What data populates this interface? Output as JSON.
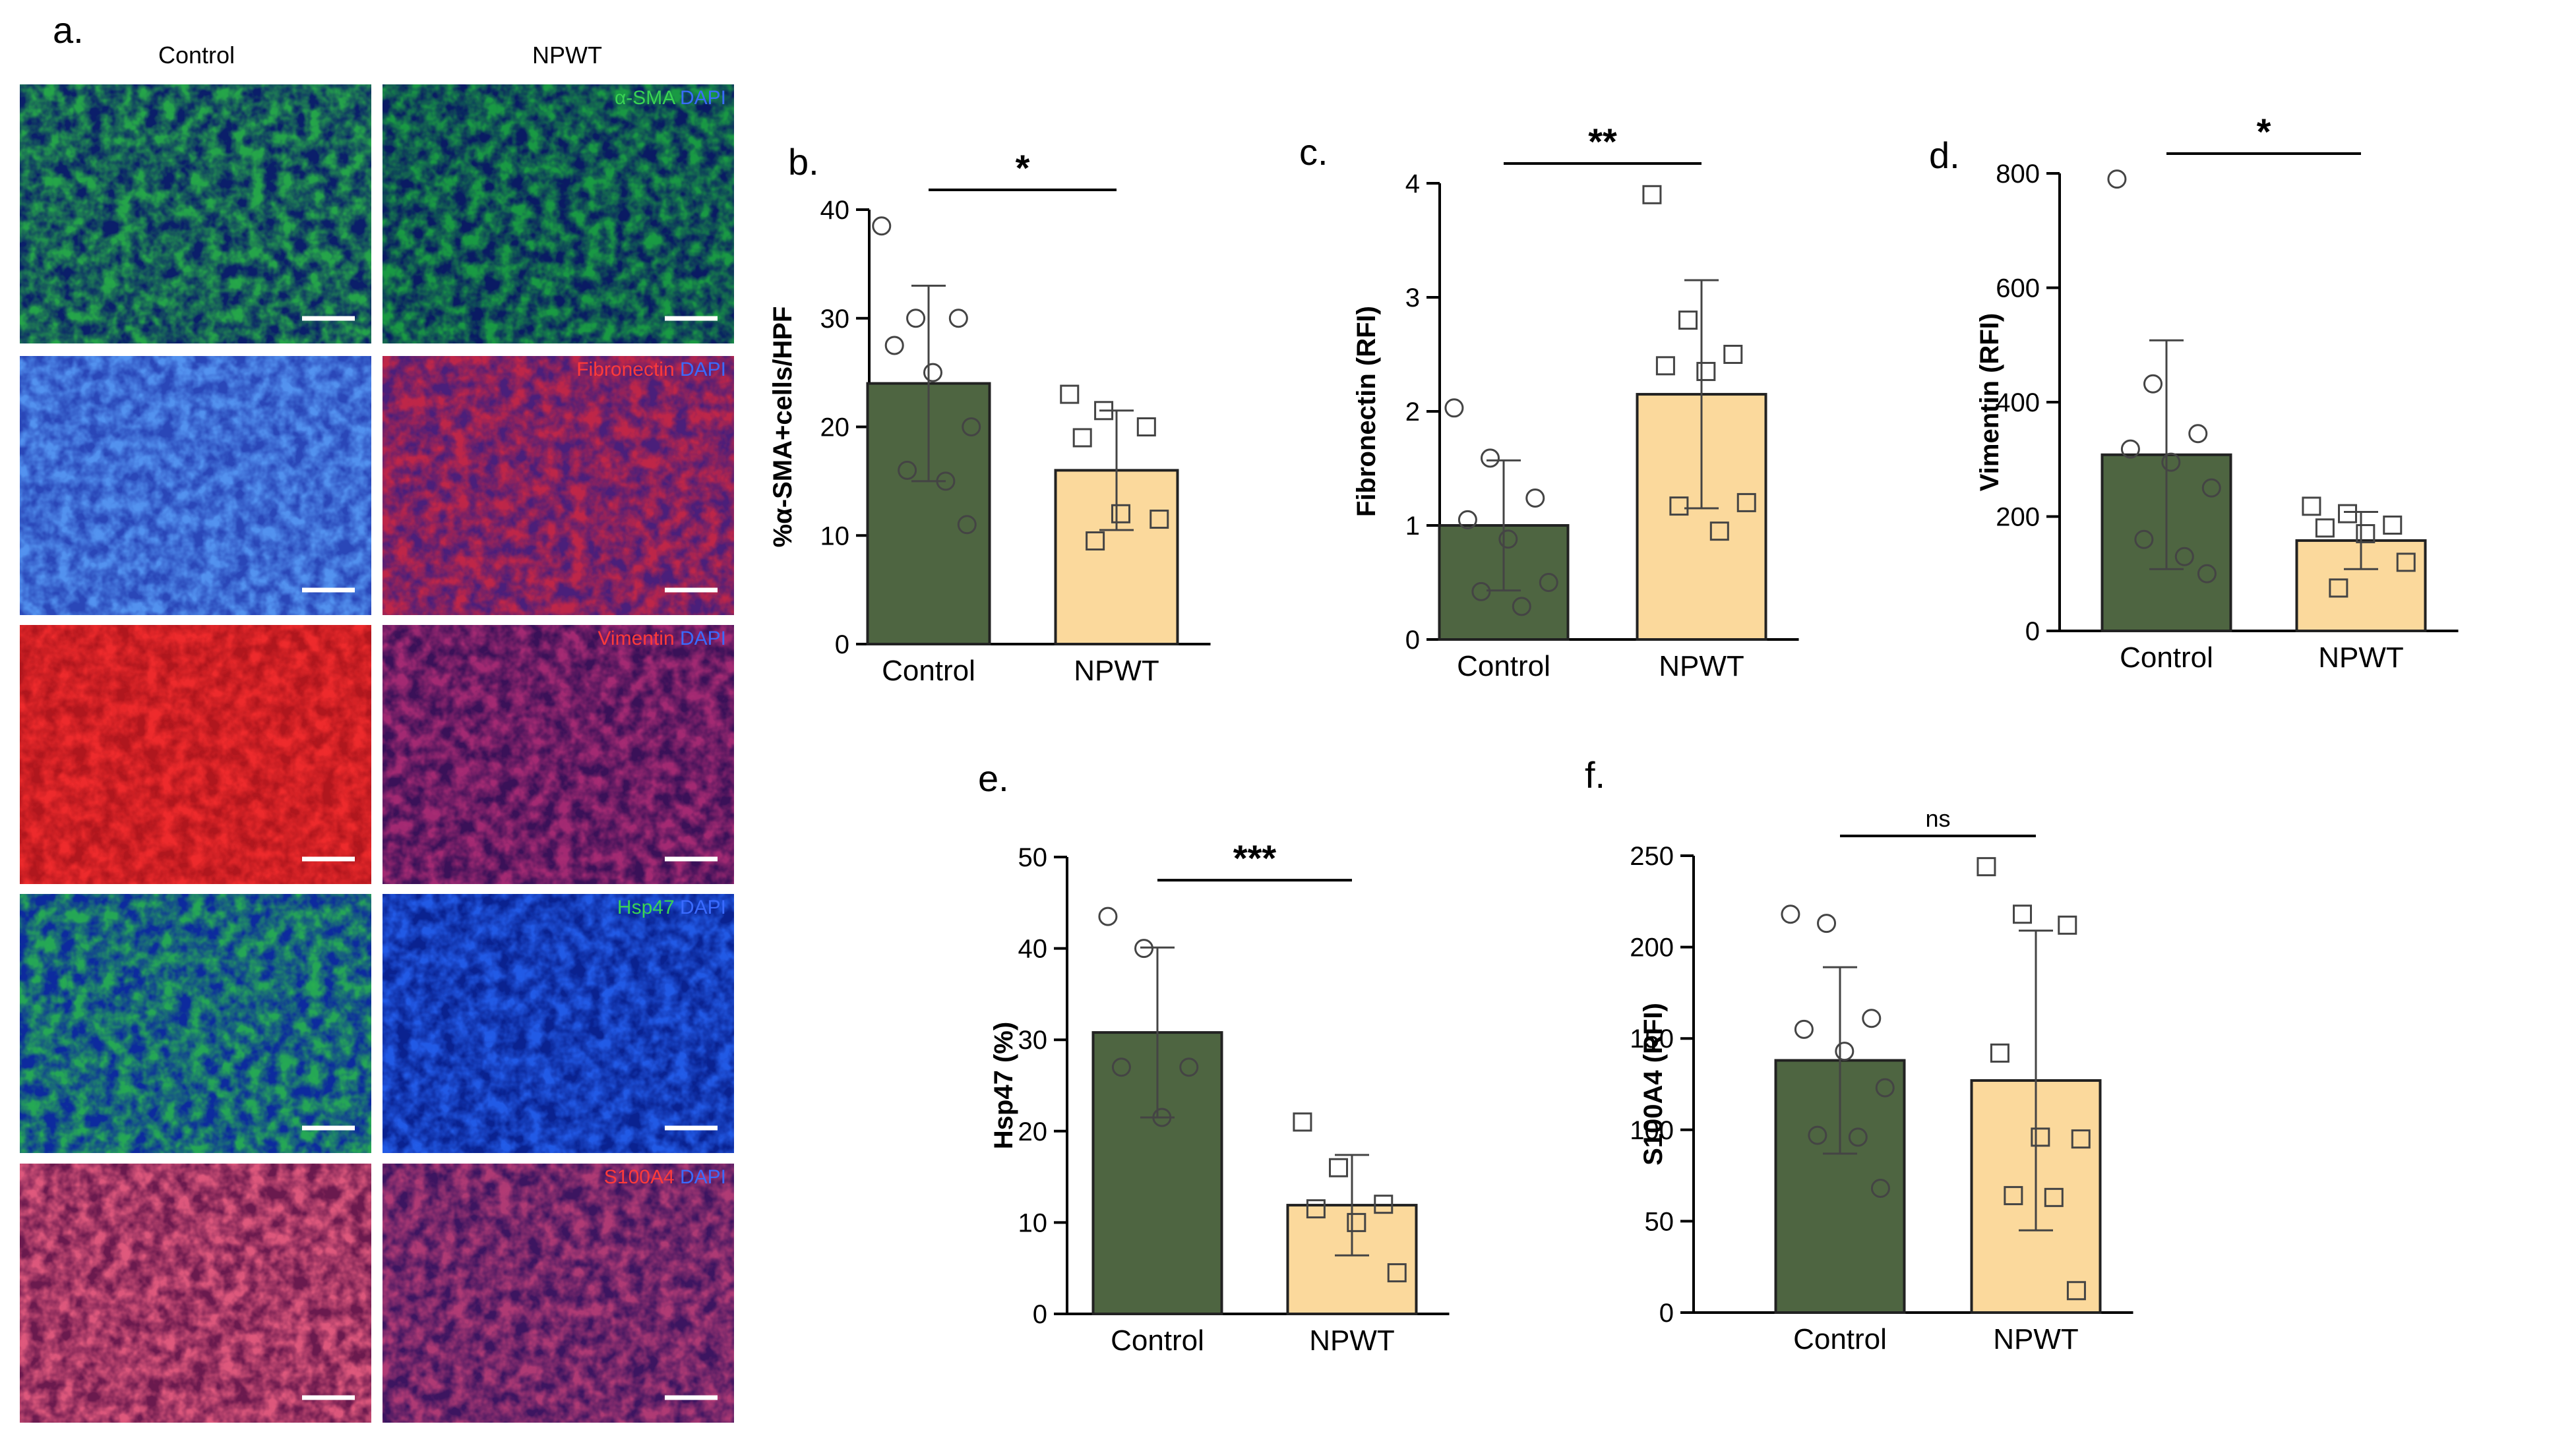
{
  "figure": {
    "panel_a": {
      "letter": "a.",
      "col_headers": [
        "Control",
        "NPWT"
      ],
      "rows": [
        {
          "stain": "α-SMA",
          "stain_color": "#39d353",
          "counter": "DAPI",
          "counter_color": "#3a6bff",
          "bg_control": "#0b1e6a",
          "bg_npwt": "#0a1a63",
          "fg_control": "#2ecc40",
          "fg_npwt": "#1fbf3a"
        },
        {
          "stain": "Fibronectin",
          "stain_color": "#ff3a3a",
          "counter": "DAPI",
          "counter_color": "#3a6bff",
          "bg_control": "#2a47b8",
          "bg_npwt": "#4a1f7a",
          "fg_control": "#5fa8ff",
          "fg_npwt": "#e0283a"
        },
        {
          "stain": "Vimentin",
          "stain_color": "#ff3a3a",
          "counter": "DAPI",
          "counter_color": "#3a6bff",
          "bg_control": "#b0171e",
          "bg_npwt": "#3a1158",
          "fg_control": "#ff3030",
          "fg_npwt": "#c2327a"
        },
        {
          "stain": "Hsp47",
          "stain_color": "#39d353",
          "counter": "DAPI",
          "counter_color": "#3a6bff",
          "bg_control": "#0d2a9e",
          "bg_npwt": "#0a2290",
          "fg_control": "#2ecc40",
          "fg_npwt": "#2a6bff"
        },
        {
          "stain": "S100A4",
          "stain_color": "#ff3a3a",
          "counter": "DAPI",
          "counter_color": "#3a6bff",
          "bg_control": "#6a1a4e",
          "bg_npwt": "#3c1560",
          "fg_control": "#ff6a8a",
          "fg_npwt": "#d0457a"
        }
      ]
    }
  },
  "colors": {
    "control_fill": "#4e6541",
    "npwt_fill": "#fbd99c",
    "bar_stroke": "#222222"
  },
  "chart_data": [
    {
      "panel": "b.",
      "type": "bar",
      "ylabel": "%α-SMA+cells/HPF",
      "categories": [
        "Control",
        "NPWT"
      ],
      "values": [
        24,
        16
      ],
      "sd": [
        9,
        5.5
      ],
      "ylim": [
        0,
        40
      ],
      "yticks": [
        0,
        10,
        20,
        30,
        40
      ],
      "points": [
        [
          38.5,
          30,
          30,
          27.5,
          25,
          20,
          16,
          15,
          11
        ],
        [
          23,
          21.5,
          20,
          19,
          12,
          11.5,
          9.5
        ]
      ],
      "significance": "*"
    },
    {
      "panel": "c.",
      "type": "bar",
      "ylabel": "Fibronectin (RFI)",
      "categories": [
        "Control",
        "NPWT"
      ],
      "values": [
        1.0,
        2.15
      ],
      "sd": [
        0.57,
        1.0
      ],
      "ylim": [
        0,
        4
      ],
      "yticks": [
        0,
        1,
        2,
        3,
        4
      ],
      "points": [
        [
          2.03,
          1.59,
          1.24,
          1.05,
          0.88,
          0.5,
          0.42,
          0.29
        ],
        [
          3.9,
          2.8,
          2.5,
          2.4,
          2.35,
          1.2,
          1.17,
          0.95
        ]
      ],
      "significance": "**"
    },
    {
      "panel": "d.",
      "type": "bar",
      "ylabel": "Vimentin (RFI)",
      "categories": [
        "Control",
        "NPWT"
      ],
      "values": [
        308,
        158
      ],
      "sd": [
        200,
        50
      ],
      "ylim": [
        0,
        800
      ],
      "yticks": [
        0,
        200,
        400,
        600,
        800
      ],
      "points": [
        [
          790,
          432,
          345,
          318,
          295,
          250,
          160,
          130,
          100
        ],
        [
          218,
          205,
          185,
          180,
          170,
          120,
          75
        ]
      ],
      "significance": "*"
    },
    {
      "panel": "e.",
      "type": "bar",
      "ylabel": "Hsp47 (%)",
      "categories": [
        "Control",
        "NPWT"
      ],
      "values": [
        30.8,
        11.9
      ],
      "sd": [
        9.3,
        5.5
      ],
      "ylim": [
        0,
        50
      ],
      "yticks": [
        0,
        10,
        20,
        30,
        40,
        50
      ],
      "points": [
        [
          43.5,
          40,
          27,
          27,
          21.5
        ],
        [
          21,
          16,
          12,
          11.5,
          10,
          4.5
        ]
      ],
      "significance": "***"
    },
    {
      "panel": "f.",
      "type": "bar",
      "ylabel": "S100A4 (RFI)",
      "categories": [
        "Control",
        "NPWT"
      ],
      "values": [
        138,
        127
      ],
      "sd": [
        51,
        82
      ],
      "ylim": [
        0,
        250
      ],
      "yticks": [
        0,
        50,
        100,
        150,
        200,
        250
      ],
      "points": [
        [
          218,
          213,
          161,
          155,
          143,
          123,
          97,
          96,
          68
        ],
        [
          244,
          218,
          212,
          142,
          96,
          95,
          64,
          63,
          12
        ]
      ],
      "significance": "ns"
    }
  ]
}
